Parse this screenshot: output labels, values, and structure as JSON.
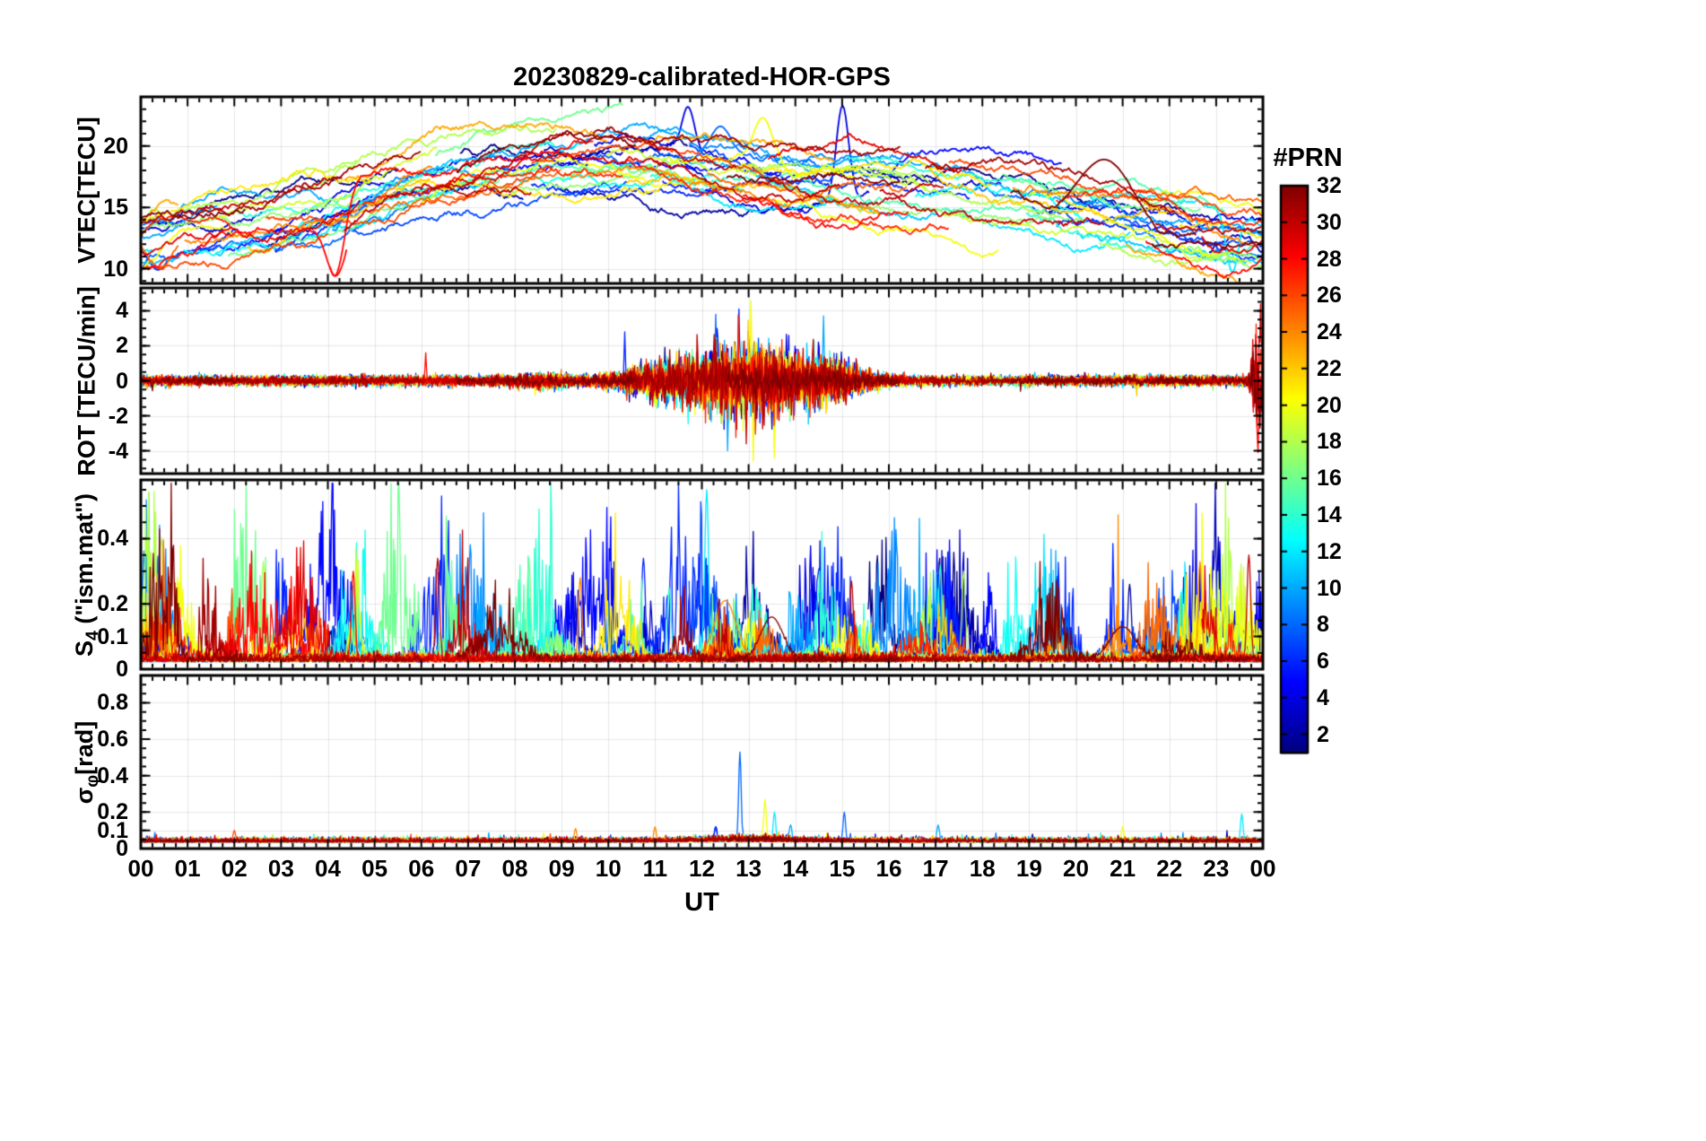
{
  "chart_data": {
    "type": "line",
    "title": "20230829-calibrated-HOR-GPS",
    "xlabel": "UT",
    "x_range": [
      0,
      24
    ],
    "x_tick_labels": [
      "00",
      "01",
      "02",
      "03",
      "04",
      "05",
      "06",
      "07",
      "08",
      "09",
      "10",
      "11",
      "12",
      "13",
      "14",
      "15",
      "16",
      "17",
      "18",
      "19",
      "20",
      "21",
      "22",
      "23",
      "00"
    ],
    "n_prn": 32,
    "legend_position": "right-colorbar",
    "grid": "light",
    "colorbar": {
      "label": "#PRN",
      "min": 1,
      "max": 32,
      "ticks": [
        2,
        4,
        6,
        8,
        10,
        12,
        14,
        16,
        18,
        20,
        22,
        24,
        26,
        28,
        30,
        32
      ],
      "colormap": "jet"
    },
    "panels": [
      {
        "id": "vtec",
        "ylabel_parts": [
          {
            "t": "VTEC[TECU]"
          }
        ],
        "ylim": [
          8.8,
          24.0
        ],
        "yticks": [
          10,
          15,
          20
        ],
        "ytick_labels": [
          "10",
          "15",
          "20"
        ],
        "minor_step": 1,
        "event_width": 0.25,
        "trend_x": [
          0,
          1,
          2.5,
          4,
          5.5,
          7,
          8.5,
          10,
          11.5,
          13,
          14.5,
          16,
          17.5,
          19,
          20.5,
          22,
          23,
          24
        ],
        "trend_y": [
          11.8,
          12.4,
          13.2,
          14.6,
          16.6,
          18.0,
          18.8,
          19.0,
          18.5,
          17.8,
          17.3,
          16.9,
          16.3,
          15.3,
          14.4,
          13.4,
          12.9,
          12.5
        ],
        "spread": 4.5,
        "bump": 3.0,
        "wander": 0.12,
        "events": [
          {
            "t": 11.7,
            "v": 23.2,
            "prn": 4,
            "w": 0.18
          },
          {
            "t": 15.0,
            "v": 23.3,
            "prn": 4,
            "w": 0.15
          },
          {
            "t": 12.4,
            "v": 21.6,
            "prn": 8,
            "w": 0.3
          },
          {
            "t": 13.3,
            "v": 22.3,
            "prn": 20,
            "w": 0.25
          },
          {
            "t": 4.15,
            "v": 9.4,
            "prn": 28,
            "w": 0.25
          },
          {
            "t": 23.35,
            "v": 9.7,
            "prn": 12,
            "w": 0.15
          },
          {
            "t": 0.35,
            "v": 9.9,
            "prn": 6,
            "w": 0.2
          },
          {
            "t": 20.6,
            "v": 18.9,
            "prn": 32,
            "w": 0.8
          }
        ]
      },
      {
        "id": "rot",
        "ylabel_parts": [
          {
            "t": "ROT [TECU/min]"
          }
        ],
        "ylim": [
          -5.3,
          5.3
        ],
        "yticks": [
          -4,
          -2,
          0,
          2,
          4
        ],
        "ytick_labels": [
          "-4",
          "-2",
          "0",
          "2",
          "4"
        ],
        "minor_step": 0.5,
        "event_width": 0.02,
        "base_noise": 0.13,
        "bursts": [
          {
            "t": 12.9,
            "w": 1.5,
            "amp": 0.85
          },
          {
            "t": 14.7,
            "w": 0.9,
            "amp": 0.3
          },
          {
            "t": 10.9,
            "w": 0.8,
            "amp": 0.22
          },
          {
            "t": 8.6,
            "w": 0.6,
            "amp": 0.1
          }
        ],
        "edge_burst": {
          "t": 23.92,
          "w": 0.15,
          "amp": 1.6,
          "prn_min": 27
        },
        "events": [
          {
            "t": 13.05,
            "v": 4.6,
            "prn": 20
          },
          {
            "t": 13.1,
            "v": -4.6,
            "prn": 20
          },
          {
            "t": 13.55,
            "v": -4.4,
            "prn": 20
          },
          {
            "t": 12.55,
            "v": -4.0,
            "prn": 10
          },
          {
            "t": 12.8,
            "v": 4.1,
            "prn": 6
          },
          {
            "t": 12.3,
            "v": 3.8,
            "prn": 8
          },
          {
            "t": 14.6,
            "v": 3.7,
            "prn": 10
          },
          {
            "t": 12.95,
            "v": -3.6,
            "prn": 30
          },
          {
            "t": 10.35,
            "v": 2.8,
            "prn": 6
          },
          {
            "t": 6.1,
            "v": 1.6,
            "prn": 28
          },
          {
            "t": 23.95,
            "v": 4.4,
            "prn": 30
          },
          {
            "t": 23.9,
            "v": -4.1,
            "prn": 28
          }
        ]
      },
      {
        "id": "s4",
        "ylabel_parts": [
          {
            "t": "S"
          },
          {
            "t": "4",
            "sub": true
          },
          {
            "t": " (\"ism.mat\")"
          }
        ],
        "ylim": [
          0,
          0.58
        ],
        "yticks": [
          0,
          0.1,
          0.2,
          0.4
        ],
        "ytick_labels": [
          "0",
          "0.1",
          "0.2",
          "0.4"
        ],
        "minor_step": 0.05,
        "event_width": 0.05,
        "baseline": 0.022,
        "noise": 0.012,
        "events": [
          {
            "t": 12.1,
            "v": 0.55,
            "prn": 12
          },
          {
            "t": 2.05,
            "v": 0.29,
            "prn": 10
          },
          {
            "t": 2.62,
            "v": 0.33,
            "prn": 18
          },
          {
            "t": 4.55,
            "v": 0.3,
            "prn": 28
          },
          {
            "t": 6.35,
            "v": 0.34,
            "prn": 30
          },
          {
            "t": 6.6,
            "v": 0.3,
            "prn": 12
          },
          {
            "t": 8.3,
            "v": 0.34,
            "prn": 16
          },
          {
            "t": 9.4,
            "v": 0.28,
            "prn": 24
          },
          {
            "t": 10.75,
            "v": 0.34,
            "prn": 6
          },
          {
            "t": 11.3,
            "v": 0.25,
            "prn": 14
          },
          {
            "t": 12.5,
            "v": 0.21,
            "prn": 24,
            "w": 0.3
          },
          {
            "t": 13.5,
            "v": 0.16,
            "prn": 32,
            "w": 0.3
          },
          {
            "t": 14.5,
            "v": 0.3,
            "prn": 6
          },
          {
            "t": 15.2,
            "v": 0.27,
            "prn": 30
          },
          {
            "t": 17.1,
            "v": 0.32,
            "prn": 14
          },
          {
            "t": 17.6,
            "v": 0.3,
            "prn": 18
          },
          {
            "t": 19.2,
            "v": 0.25,
            "prn": 12
          },
          {
            "t": 21.0,
            "v": 0.13,
            "prn": 32,
            "w": 0.35
          },
          {
            "t": 21.15,
            "v": 0.26,
            "prn": 2
          },
          {
            "t": 22.65,
            "v": 0.33,
            "prn": 24
          },
          {
            "t": 23.3,
            "v": 0.15,
            "prn": 4,
            "w": 0.4
          },
          {
            "t": 23.7,
            "v": 0.35,
            "prn": 30
          }
        ]
      },
      {
        "id": "sigma_phi",
        "ylabel_parts": [
          {
            "t": "σ"
          },
          {
            "t": "φ",
            "sub": true
          },
          {
            "t": "[rad]"
          }
        ],
        "ylim": [
          0,
          0.95
        ],
        "yticks": [
          0,
          0.1,
          0.2,
          0.4,
          0.6,
          0.8
        ],
        "ytick_labels": [
          "0",
          "0.1",
          "0.2",
          "0.4",
          "0.6",
          "0.8"
        ],
        "minor_step": 0.05,
        "event_width": 0.04,
        "baseline": 0.035,
        "noise": 0.01,
        "events": [
          {
            "t": 12.82,
            "v": 0.53,
            "prn": 8
          },
          {
            "t": 13.35,
            "v": 0.27,
            "prn": 20
          },
          {
            "t": 13.55,
            "v": 0.2,
            "prn": 12
          },
          {
            "t": 15.05,
            "v": 0.2,
            "prn": 8
          },
          {
            "t": 23.55,
            "v": 0.19,
            "prn": 12
          },
          {
            "t": 11.0,
            "v": 0.12,
            "prn": 24
          },
          {
            "t": 17.05,
            "v": 0.13,
            "prn": 10
          },
          {
            "t": 21.0,
            "v": 0.12,
            "prn": 20
          },
          {
            "t": 9.3,
            "v": 0.11,
            "prn": 24
          },
          {
            "t": 2.0,
            "v": 0.1,
            "prn": 26
          },
          {
            "t": 12.3,
            "v": 0.12,
            "prn": 6
          },
          {
            "t": 13.9,
            "v": 0.13,
            "prn": 10
          }
        ]
      }
    ]
  }
}
